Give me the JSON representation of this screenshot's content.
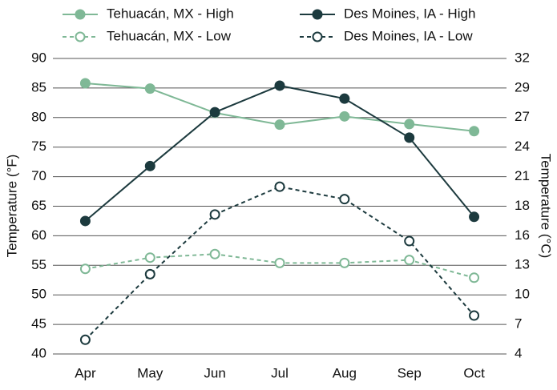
{
  "chart_data": {
    "type": "line",
    "categories": [
      "Apr",
      "May",
      "Jun",
      "Jul",
      "Aug",
      "Sep",
      "Oct"
    ],
    "y_label": "Temperature (°F)",
    "y2_label": "Temperature (°C)",
    "series": [
      {
        "name": "Tehuacán, MX - High",
        "color": "#7fb896",
        "dashed": false,
        "hollow": false,
        "values": [
          85.8,
          84.9,
          80.8,
          78.8,
          80.2,
          78.9,
          77.7
        ]
      },
      {
        "name": "Des Moines, IA - High",
        "color": "#1c3a3e",
        "dashed": false,
        "hollow": false,
        "values": [
          62.5,
          71.8,
          80.9,
          85.4,
          83.2,
          76.6,
          63.2
        ]
      },
      {
        "name": "Tehuacán, MX - Low",
        "color": "#7fb896",
        "dashed": true,
        "hollow": true,
        "values": [
          54.4,
          56.3,
          56.9,
          55.4,
          55.4,
          55.9,
          52.9
        ]
      },
      {
        "name": "Des Moines, IA - Low",
        "color": "#1c3a3e",
        "dashed": true,
        "hollow": true,
        "values": [
          42.4,
          53.5,
          63.6,
          68.3,
          66.2,
          59.1,
          46.5
        ]
      }
    ],
    "ylim": [
      40,
      90
    ],
    "yticks": [
      40,
      45,
      50,
      55,
      60,
      65,
      70,
      75,
      80,
      85,
      90
    ],
    "y2lim": [
      4.44,
      32.22
    ],
    "y2ticks": [
      {
        "value": 4.44,
        "label": "4"
      },
      {
        "value": 7.22,
        "label": "7"
      },
      {
        "value": 10,
        "label": "10"
      },
      {
        "value": 12.78,
        "label": "13"
      },
      {
        "value": 15.56,
        "label": "16"
      },
      {
        "value": 18.33,
        "label": "18"
      },
      {
        "value": 21.11,
        "label": "21"
      },
      {
        "value": 23.89,
        "label": "24"
      },
      {
        "value": 26.67,
        "label": "27"
      },
      {
        "value": 29.44,
        "label": "29"
      },
      {
        "value": 32.22,
        "label": "32"
      }
    ],
    "grid": true
  }
}
